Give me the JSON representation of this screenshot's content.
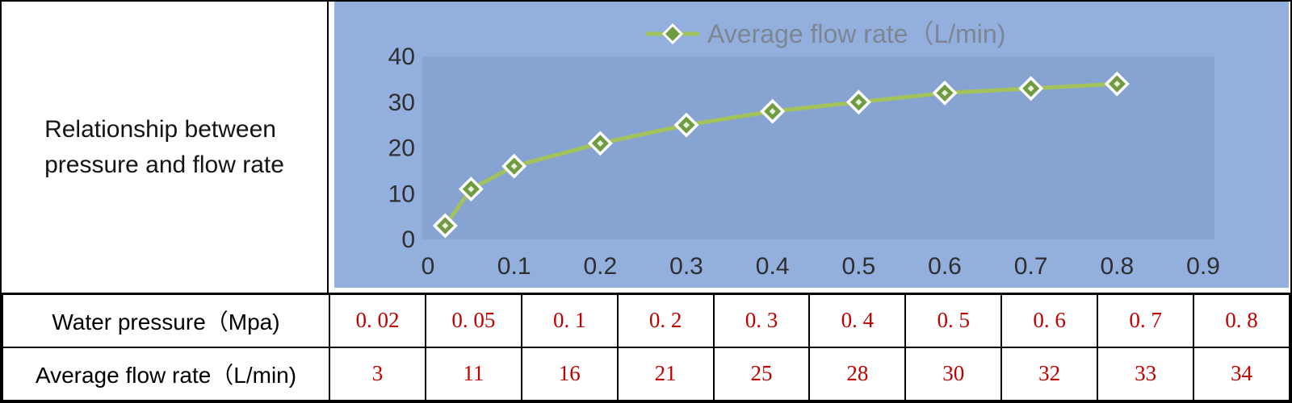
{
  "panel": {
    "title_line1": "Relationship between",
    "title_line2": "pressure and flow rate"
  },
  "chart_data": {
    "type": "line",
    "title": "Relationship between pressure and flow rate",
    "legend": "Average flow rate（L/min)",
    "legend_position": "top",
    "x": [
      0.02,
      0.05,
      0.1,
      0.2,
      0.3,
      0.4,
      0.5,
      0.6,
      0.7,
      0.8
    ],
    "y": [
      3,
      11,
      16,
      21,
      25,
      28,
      30,
      32,
      33,
      34
    ],
    "x_ticks": [
      "0",
      "0.1",
      "0.2",
      "0.3",
      "0.4",
      "0.5",
      "0.6",
      "0.7",
      "0.8",
      "0.9"
    ],
    "y_ticks": [
      "0",
      "10",
      "20",
      "30",
      "40"
    ],
    "xlim": [
      0,
      0.9
    ],
    "ylim": [
      0,
      40
    ],
    "grid": false,
    "colors": {
      "line": "#a2c25c",
      "marker_fill": "#6f9c3e",
      "marker_stroke": "#ffffff",
      "chart_bg": "#93afdd",
      "plot_bg": "#87a3d2",
      "tick_text": "#2f2f2f",
      "legend_text": "#7d8692"
    }
  },
  "table": {
    "value_color": "#c00000",
    "rows": [
      {
        "label": "Water pressure（Mpa)",
        "values": [
          "0. 02",
          "0. 05",
          "0. 1",
          "0. 2",
          "0. 3",
          "0. 4",
          "0. 5",
          "0. 6",
          "0. 7",
          "0. 8"
        ]
      },
      {
        "label": "Average flow rate（L/min)",
        "values": [
          "3",
          "11",
          "16",
          "21",
          "25",
          "28",
          "30",
          "32",
          "33",
          "34"
        ]
      }
    ]
  }
}
